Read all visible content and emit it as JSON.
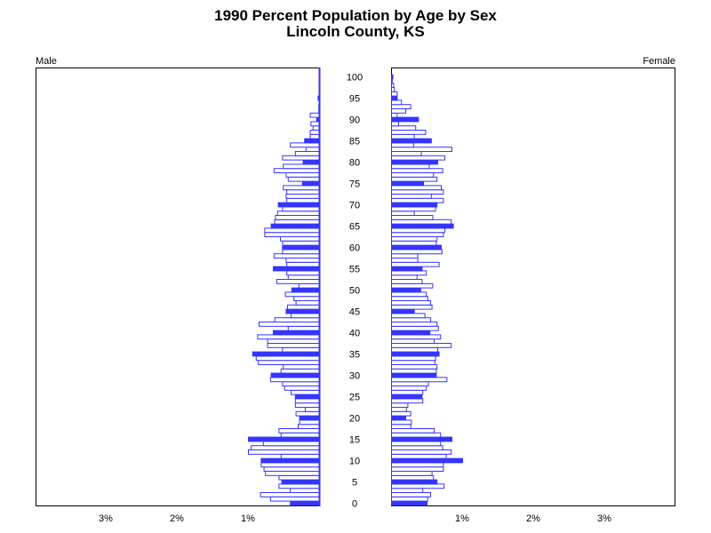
{
  "title": "1990 Percent Population by Age by Sex",
  "subtitle": "Lincoln County, KS",
  "colors": {
    "bar_fill": "#ffffff",
    "bar_stroke": "#3535ff",
    "highlight_fill": "#3535ff",
    "axis": "#000000"
  },
  "chart_data": {
    "type": "bar",
    "orientation": "horizontal-pyramid",
    "title": "1990 Percent Population by Age by Sex",
    "subtitle": "Lincoln County, KS",
    "left_panel_label": "Male",
    "right_panel_label": "Female",
    "age_ticks": [
      "0",
      "5",
      "10",
      "15",
      "20",
      "25",
      "30",
      "35",
      "40",
      "45",
      "50",
      "55",
      "60",
      "65",
      "70",
      "75",
      "80",
      "85",
      "90",
      "95",
      "100"
    ],
    "x_tick_labels": [
      "3%",
      "2%",
      "1%",
      "1%",
      "2%",
      "3%"
    ],
    "xlim": [
      0,
      4
    ],
    "highlight_every": 5,
    "ages": [
      0,
      1,
      2,
      3,
      4,
      5,
      6,
      7,
      8,
      9,
      10,
      11,
      12,
      13,
      14,
      15,
      16,
      17,
      18,
      19,
      20,
      21,
      22,
      23,
      24,
      25,
      26,
      27,
      28,
      29,
      30,
      31,
      32,
      33,
      34,
      35,
      36,
      37,
      38,
      39,
      40,
      41,
      42,
      43,
      44,
      45,
      46,
      47,
      48,
      49,
      50,
      51,
      52,
      53,
      54,
      55,
      56,
      57,
      58,
      59,
      60,
      61,
      62,
      63,
      64,
      65,
      66,
      67,
      68,
      69,
      70,
      71,
      72,
      73,
      74,
      75,
      76,
      77,
      78,
      79,
      80,
      81,
      82,
      83,
      84,
      85,
      86,
      87,
      88,
      89,
      90,
      91,
      92,
      93,
      94,
      95,
      96,
      97,
      98,
      99,
      100
    ],
    "series": [
      {
        "name": "Male",
        "values": [
          0.41,
          0.69,
          0.83,
          0.41,
          0.57,
          0.53,
          0.57,
          0.76,
          0.78,
          0.82,
          0.82,
          0.54,
          1.0,
          0.96,
          0.79,
          1.0,
          0.54,
          0.57,
          0.3,
          0.28,
          0.28,
          0.33,
          0.2,
          0.34,
          0.34,
          0.34,
          0.4,
          0.49,
          0.52,
          0.69,
          0.68,
          0.54,
          0.51,
          0.86,
          0.89,
          0.94,
          0.52,
          0.73,
          0.73,
          0.87,
          0.65,
          0.44,
          0.85,
          0.63,
          0.4,
          0.47,
          0.45,
          0.33,
          0.36,
          0.48,
          0.39,
          0.29,
          0.6,
          0.44,
          0.46,
          0.65,
          0.46,
          0.47,
          0.64,
          0.52,
          0.52,
          0.52,
          0.55,
          0.77,
          0.77,
          0.68,
          0.63,
          0.62,
          0.59,
          0.52,
          0.58,
          0.46,
          0.47,
          0.46,
          0.51,
          0.24,
          0.44,
          0.47,
          0.64,
          0.51,
          0.23,
          0.52,
          0.34,
          0.19,
          0.41,
          0.21,
          0.13,
          0.13,
          0.09,
          0.12,
          0.04,
          0.13,
          0.01,
          0.01,
          0.0,
          0.02,
          0.0,
          0.0,
          0.0,
          0.0,
          0.0
        ]
      },
      {
        "name": "Female",
        "values": [
          0.5,
          0.51,
          0.55,
          0.44,
          0.74,
          0.64,
          0.59,
          0.57,
          0.73,
          0.73,
          1.0,
          0.77,
          0.84,
          0.72,
          0.69,
          0.85,
          0.69,
          0.6,
          0.27,
          0.28,
          0.2,
          0.27,
          0.21,
          0.23,
          0.44,
          0.43,
          0.44,
          0.49,
          0.52,
          0.78,
          0.63,
          0.63,
          0.64,
          0.61,
          0.62,
          0.67,
          0.65,
          0.84,
          0.6,
          0.69,
          0.54,
          0.66,
          0.64,
          0.55,
          0.47,
          0.32,
          0.57,
          0.55,
          0.51,
          0.49,
          0.41,
          0.58,
          0.43,
          0.36,
          0.49,
          0.43,
          0.67,
          0.37,
          0.37,
          0.71,
          0.7,
          0.63,
          0.64,
          0.73,
          0.75,
          0.87,
          0.84,
          0.58,
          0.32,
          0.62,
          0.64,
          0.73,
          0.56,
          0.73,
          0.7,
          0.45,
          0.64,
          0.59,
          0.72,
          0.53,
          0.65,
          0.75,
          0.42,
          0.85,
          0.31,
          0.56,
          0.32,
          0.48,
          0.34,
          0.1,
          0.38,
          0.08,
          0.2,
          0.27,
          0.14,
          0.08,
          0.08,
          0.04,
          0.03,
          0.01,
          0.02
        ]
      }
    ]
  }
}
